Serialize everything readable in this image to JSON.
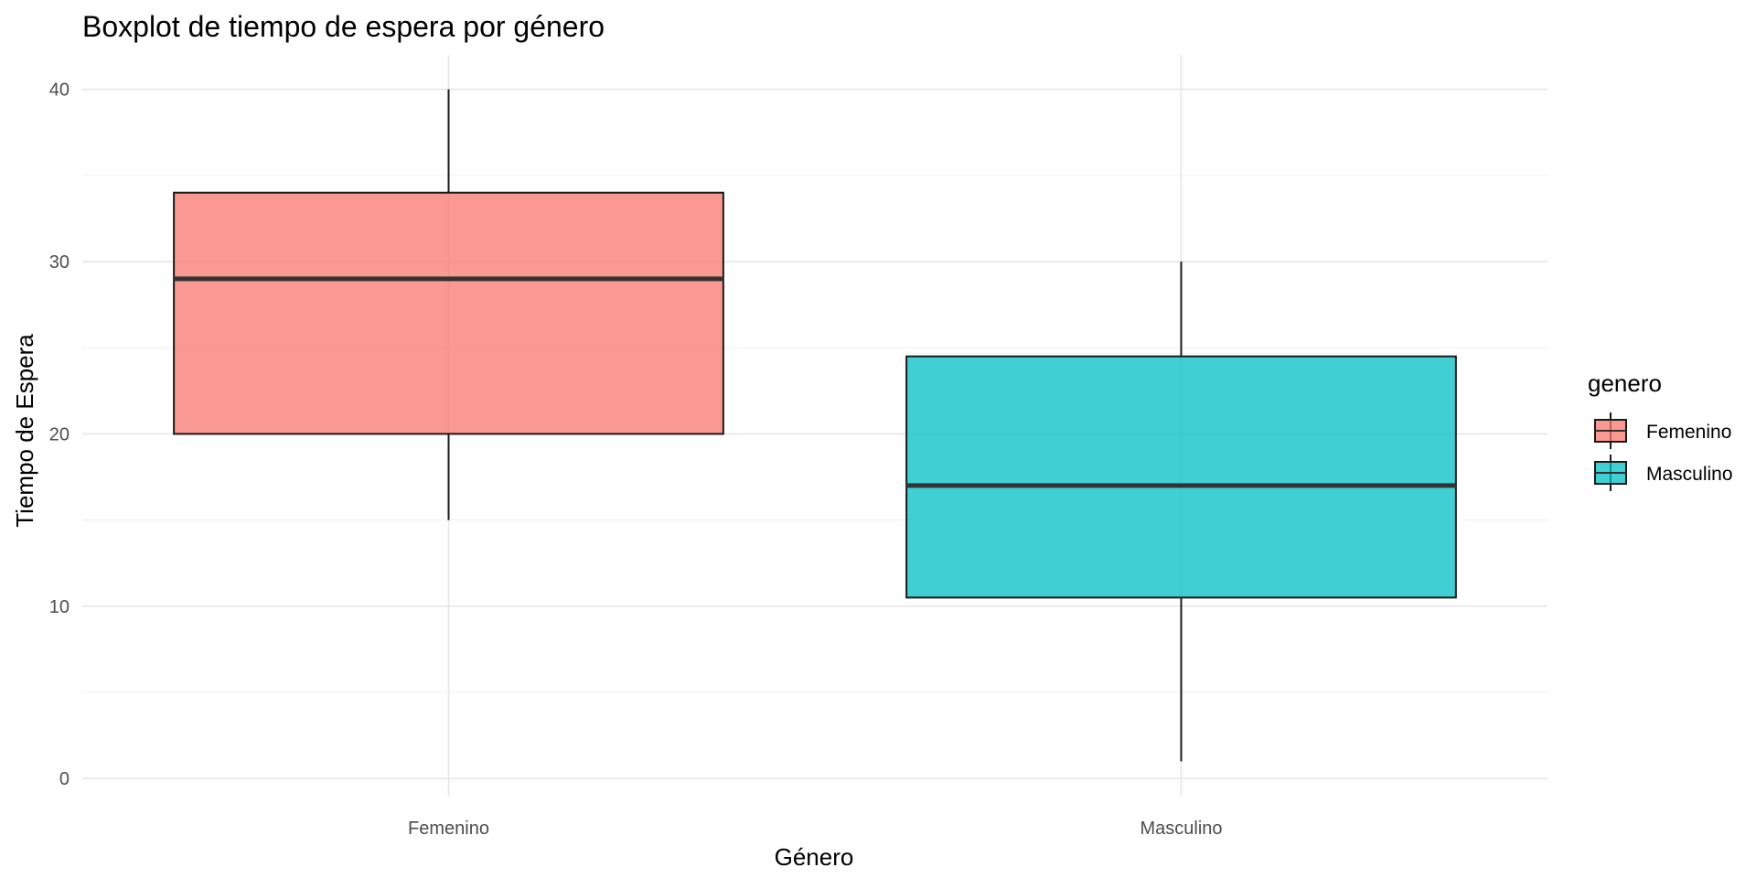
{
  "chart_data": {
    "type": "boxplot",
    "title": "Boxplot de tiempo de espera por género",
    "xlabel": "Género",
    "ylabel": "Tiempo de Espera",
    "ylim": [
      -1,
      42
    ],
    "yticks": [
      0,
      10,
      20,
      30,
      40
    ],
    "categories": [
      "Femenino",
      "Masculino"
    ],
    "boxes": [
      {
        "category": "Femenino",
        "whisker_low": 15,
        "q1": 20,
        "median": 29,
        "q3": 34,
        "whisker_high": 40,
        "fill": "#F8766D"
      },
      {
        "category": "Masculino",
        "whisker_low": 1,
        "q1": 10.5,
        "median": 17,
        "q3": 24.5,
        "whisker_high": 30,
        "fill": "#00BFC4"
      }
    ],
    "grid": true,
    "legend": {
      "title": "genero",
      "placement": "right",
      "entries": [
        {
          "label": "Femenino",
          "color": "#F8766D"
        },
        {
          "label": "Masculino",
          "color": "#00BFC4"
        }
      ]
    }
  }
}
